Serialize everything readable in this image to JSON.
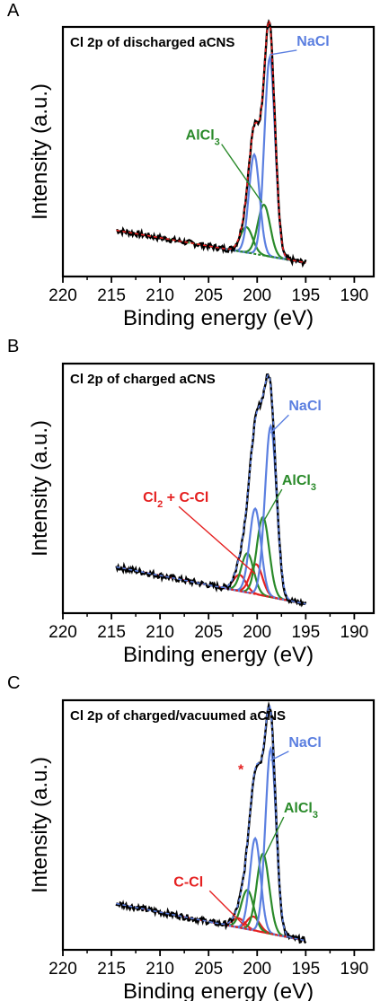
{
  "chart_data": [
    {
      "panel_label": "A",
      "type": "line",
      "title": "Cl 2p of discharged aCNS",
      "xlabel": "Binding energy (eV)",
      "ylabel": "Intensity (a.u.)",
      "xlim": [
        220,
        188
      ],
      "x_ticks": [
        "220",
        "215",
        "210",
        "205",
        "200",
        "195",
        "190"
      ],
      "x_reversed": true,
      "y_ticks_shown": false,
      "annotations": [
        {
          "text": "NaCl",
          "color": "#5b7fe0",
          "target_x": 198.7,
          "target_y": 0.92
        },
        {
          "text": "AlCl",
          "sub": "3",
          "color": "#2a8a2a",
          "target_x": 199.5,
          "target_y": 0.28
        }
      ],
      "background": {
        "x0": 214.5,
        "y0": 0.16,
        "x1": 195.0,
        "y1": 0.02,
        "color": "#2a8a2a"
      },
      "series": [
        {
          "role": "AlCl3 2p1/2",
          "color": "#2a8a2a",
          "center": 201.1,
          "height": 0.11,
          "fwhm": 1.5
        },
        {
          "role": "AlCl3 2p3/2",
          "color": "#2a8a2a",
          "center": 199.3,
          "height": 0.22,
          "fwhm": 1.5
        },
        {
          "role": "NaCl 2p1/2",
          "color": "#5b7fe0",
          "center": 200.3,
          "height": 0.43,
          "fwhm": 1.3
        },
        {
          "role": "NaCl 2p3/2",
          "color": "#5b7fe0",
          "center": 198.7,
          "height": 0.86,
          "fwhm": 1.3
        }
      ]
    },
    {
      "panel_label": "B",
      "type": "line",
      "title": "Cl 2p of charged aCNS",
      "xlabel": "Binding energy (eV)",
      "ylabel": "Intensity (a.u.)",
      "xlim": [
        220,
        188
      ],
      "x_ticks": [
        "220",
        "215",
        "210",
        "205",
        "200",
        "195",
        "190"
      ],
      "x_reversed": true,
      "y_ticks_shown": false,
      "annotations": [
        {
          "text": "NaCl",
          "color": "#5b7fe0",
          "target_x": 198.6,
          "target_y": 0.74
        },
        {
          "text": "AlCl",
          "sub": "3",
          "color": "#2a8a2a",
          "target_x": 199.3,
          "target_y": 0.36
        },
        {
          "text": "Cl",
          "sub": "2",
          "suffix": " + C-Cl",
          "color": "#e52020",
          "target_x": 200.2,
          "target_y": 0.13
        }
      ],
      "background": {
        "x0": 214.5,
        "y0": 0.16,
        "x1": 195.0,
        "y1": 0.0,
        "color": "#e52020"
      },
      "series": [
        {
          "role": "Cl2/C-Cl 2p1/2",
          "color": "#e52020",
          "center": 201.8,
          "height": 0.07,
          "fwhm": 1.5
        },
        {
          "role": "Cl2/C-Cl 2p3/2",
          "color": "#e52020",
          "center": 200.1,
          "height": 0.13,
          "fwhm": 1.5
        },
        {
          "role": "AlCl3 2p1/2",
          "color": "#2a8a2a",
          "center": 201.0,
          "height": 0.17,
          "fwhm": 1.5
        },
        {
          "role": "AlCl3 2p3/2",
          "color": "#2a8a2a",
          "center": 199.4,
          "height": 0.34,
          "fwhm": 1.5
        },
        {
          "role": "NaCl 2p1/2",
          "color": "#5b7fe0",
          "center": 200.2,
          "height": 0.37,
          "fwhm": 1.4
        },
        {
          "role": "NaCl 2p3/2",
          "color": "#5b7fe0",
          "center": 198.6,
          "height": 0.74,
          "fwhm": 1.4
        }
      ]
    },
    {
      "panel_label": "C",
      "type": "line",
      "title": "Cl 2p of charged/vacuumed aCNS",
      "xlabel": "Binding energy (eV)",
      "ylabel": "Intensity (a.u.)",
      "xlim": [
        220,
        188
      ],
      "x_ticks": [
        "220",
        "215",
        "210",
        "205",
        "200",
        "195",
        "190"
      ],
      "x_reversed": true,
      "y_ticks_shown": false,
      "annotations": [
        {
          "text": "NaCl",
          "color": "#5b7fe0",
          "target_x": 198.6,
          "target_y": 0.78
        },
        {
          "text": "AlCl",
          "sub": "3",
          "color": "#2a8a2a",
          "target_x": 199.3,
          "target_y": 0.36
        },
        {
          "text": "C-Cl",
          "color": "#e52020",
          "target_x": 201.2,
          "target_y": 0.06
        },
        {
          "text": "*",
          "color": "#e52020",
          "target_x": 200.3,
          "target_y": 0.72
        }
      ],
      "background": {
        "x0": 214.5,
        "y0": 0.16,
        "x1": 195.0,
        "y1": 0.0,
        "color": "#e52020"
      },
      "series": [
        {
          "role": "C-Cl 2p1/2",
          "color": "#e52020",
          "center": 201.9,
          "height": 0.04,
          "fwhm": 1.5
        },
        {
          "role": "C-Cl 2p3/2",
          "color": "#e52020",
          "center": 200.4,
          "height": 0.06,
          "fwhm": 1.5
        },
        {
          "role": "AlCl3 2p1/2",
          "color": "#2a8a2a",
          "center": 201.0,
          "height": 0.17,
          "fwhm": 1.5
        },
        {
          "role": "AlCl3 2p3/2",
          "color": "#2a8a2a",
          "center": 199.4,
          "height": 0.34,
          "fwhm": 1.5
        },
        {
          "role": "NaCl 2p1/2",
          "color": "#5b7fe0",
          "center": 200.2,
          "height": 0.4,
          "fwhm": 1.3
        },
        {
          "role": "NaCl 2p3/2",
          "color": "#5b7fe0",
          "center": 198.6,
          "height": 0.8,
          "fwhm": 1.3
        }
      ]
    }
  ]
}
